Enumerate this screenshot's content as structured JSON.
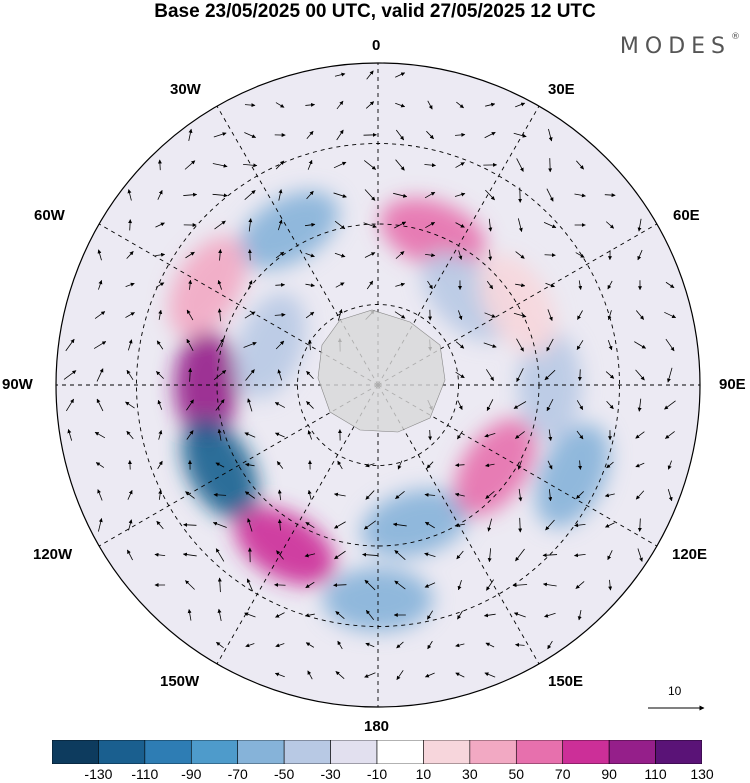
{
  "title": "Base 23/05/2025 00 UTC, valid 27/05/2025 12 UTC",
  "brand": "MODES",
  "brand_mark": "®",
  "longitude_labels": {
    "top": "0",
    "top_right": "30E",
    "right_upper": "60E",
    "right": "90E",
    "right_lower": "120E",
    "bottom_right": "150E",
    "bottom": "180",
    "bottom_left": "150W",
    "left_lower": "120W",
    "left": "90W",
    "left_upper": "60W",
    "top_left": "30W"
  },
  "reference_vector_label": "10",
  "colorbar": {
    "tick_labels": [
      "-130",
      "-110",
      "-90",
      "-70",
      "-50",
      "-30",
      "-10",
      "10",
      "30",
      "50",
      "70",
      "90",
      "110",
      "130"
    ],
    "colors": [
      "#0d3b5e",
      "#1a5f8f",
      "#2e7db4",
      "#4e9bcb",
      "#86b3d9",
      "#b8c9e4",
      "#e2e0ef",
      "#ffffff",
      "#f7d6dc",
      "#f2a9c3",
      "#e770ad",
      "#cc2f98",
      "#951f8a",
      "#5a1377"
    ]
  },
  "anomaly_blobs": [
    {
      "value": -60,
      "lon": 330,
      "lat": -40
    },
    {
      "value": 70,
      "lon": 20,
      "lat": -45
    },
    {
      "value": 110,
      "lon": 270,
      "lat": -42
    },
    {
      "value": -110,
      "lon": 242,
      "lat": -40
    },
    {
      "value": 90,
      "lon": 210,
      "lat": -38
    },
    {
      "value": -60,
      "lon": 165,
      "lat": -50
    },
    {
      "value": -60,
      "lon": 180,
      "lat": -30
    },
    {
      "value": 60,
      "lon": 125,
      "lat": -50
    },
    {
      "value": -40,
      "lon": 90,
      "lat": -42
    },
    {
      "value": -50,
      "lon": 115,
      "lat": -30
    },
    {
      "value": -40,
      "lon": 45,
      "lat": -55
    },
    {
      "value": 40,
      "lon": 300,
      "lat": -35
    },
    {
      "value": -40,
      "lon": 290,
      "lat": -58
    },
    {
      "value": 30,
      "lon": 60,
      "lat": -45
    }
  ]
}
